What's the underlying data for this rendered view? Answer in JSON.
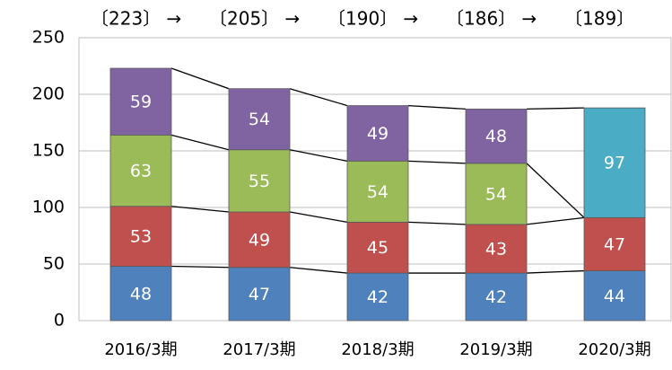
{
  "chart_data": {
    "type": "stacked_bar",
    "categories": [
      "2016/3期",
      "2017/3期",
      "2018/3期",
      "2019/3期",
      "2020/3期"
    ],
    "series": [
      {
        "name": "Series 1",
        "color": "#4f81bd",
        "values": [
          48,
          47,
          42,
          42,
          44
        ]
      },
      {
        "name": "Series 2",
        "color": "#c0504d",
        "values": [
          53,
          49,
          45,
          43,
          47
        ]
      },
      {
        "name": "Series 3",
        "color": "#9bbb59",
        "values": [
          63,
          55,
          54,
          54,
          null
        ]
      },
      {
        "name": "Series 4",
        "color": "#8064a2",
        "values": [
          59,
          54,
          49,
          48,
          null
        ]
      },
      {
        "name": "Series 5",
        "color": "#4bacc6",
        "values": [
          null,
          null,
          null,
          null,
          97
        ]
      }
    ],
    "total_labels": [
      "〔223〕 →",
      "〔205〕 →",
      "〔190〕 →",
      "〔186〕 →",
      "〔189〕"
    ],
    "ylim": [
      0,
      250
    ],
    "yticks": [
      0,
      50,
      100,
      150,
      200,
      250
    ],
    "grid": true
  }
}
